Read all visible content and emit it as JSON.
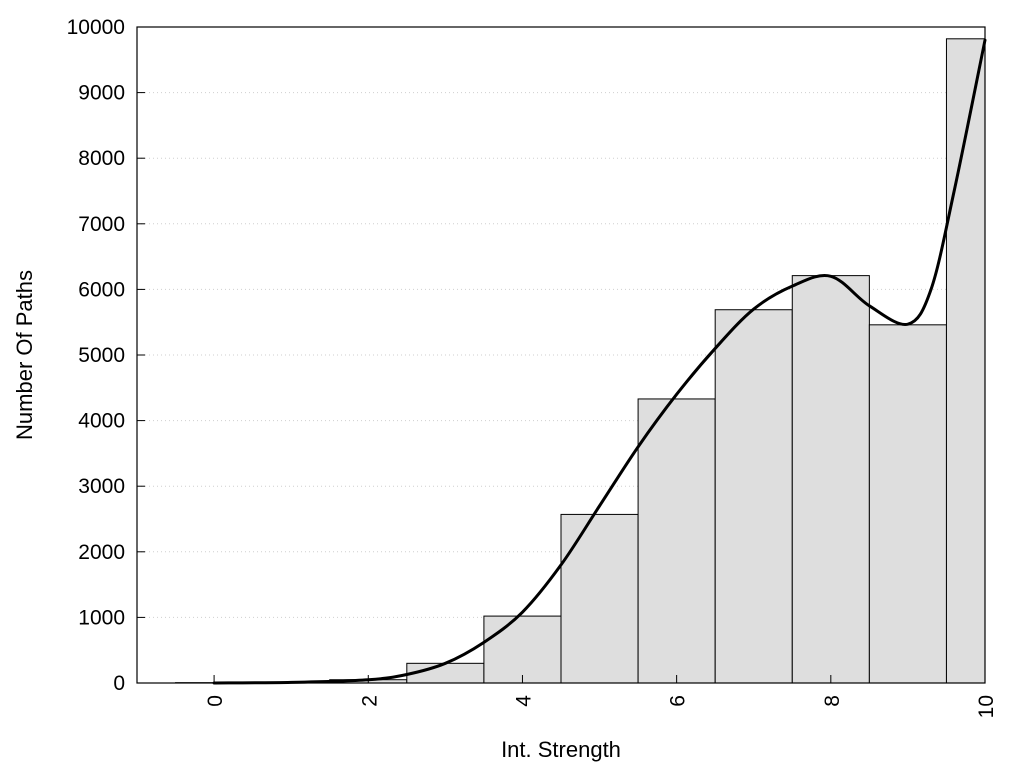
{
  "chart_data": {
    "type": "bar",
    "xlabel": "Int. Strength",
    "ylabel": "Number Of Paths",
    "xlim": [
      -1,
      10
    ],
    "ylim": [
      0,
      10000
    ],
    "xticks": [
      "0",
      "2",
      "4",
      "6",
      "8",
      "10"
    ],
    "yticks": [
      "0",
      "1000",
      "2000",
      "3000",
      "4000",
      "5000",
      "6000",
      "7000",
      "8000",
      "9000",
      "10000"
    ],
    "grid": "horizontal dotted",
    "colors": {
      "bar_fill": "#dedede",
      "bar_edge": "#000000",
      "curve": "#000000"
    },
    "series": [
      {
        "type": "bar",
        "x": [
          0,
          1,
          2,
          3,
          4,
          5,
          6,
          7,
          8,
          9,
          10
        ],
        "values": [
          5,
          15,
          50,
          300,
          1020,
          2570,
          4330,
          5690,
          6210,
          5460,
          9820
        ]
      },
      {
        "type": "line",
        "x": [
          0,
          1,
          2,
          2.5,
          3,
          3.5,
          4,
          4.5,
          5,
          5.5,
          6,
          6.5,
          7,
          7.5,
          8,
          8.5,
          9,
          9.3,
          9.6,
          10
        ],
        "y": [
          0,
          10,
          50,
          130,
          300,
          620,
          1080,
          1800,
          2700,
          3600,
          4400,
          5100,
          5700,
          6050,
          6200,
          5750,
          5470,
          6000,
          7500,
          9800
        ]
      }
    ]
  }
}
